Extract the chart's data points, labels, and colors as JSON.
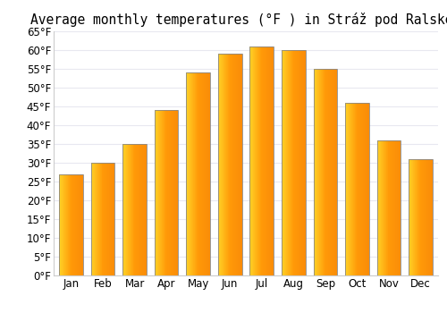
{
  "title": "Average monthly temperatures (°F ) in Stráž pod Ralskem",
  "months": [
    "Jan",
    "Feb",
    "Mar",
    "Apr",
    "May",
    "Jun",
    "Jul",
    "Aug",
    "Sep",
    "Oct",
    "Nov",
    "Dec"
  ],
  "values": [
    27,
    30,
    35,
    44,
    54,
    59,
    61,
    60,
    55,
    46,
    36,
    31
  ],
  "ylim": [
    0,
    65
  ],
  "yticks": [
    0,
    5,
    10,
    15,
    20,
    25,
    30,
    35,
    40,
    45,
    50,
    55,
    60,
    65
  ],
  "ytick_labels": [
    "0°F",
    "5°F",
    "10°F",
    "15°F",
    "20°F",
    "25°F",
    "30°F",
    "35°F",
    "40°F",
    "45°F",
    "50°F",
    "55°F",
    "60°F",
    "65°F"
  ],
  "bar_color_left": "#FFD040",
  "bar_color_center": "#FFA010",
  "bar_edge_color": "#888888",
  "background_color": "#FFFFFF",
  "grid_color": "#E8E8F0",
  "title_fontsize": 10.5,
  "tick_fontsize": 8.5
}
